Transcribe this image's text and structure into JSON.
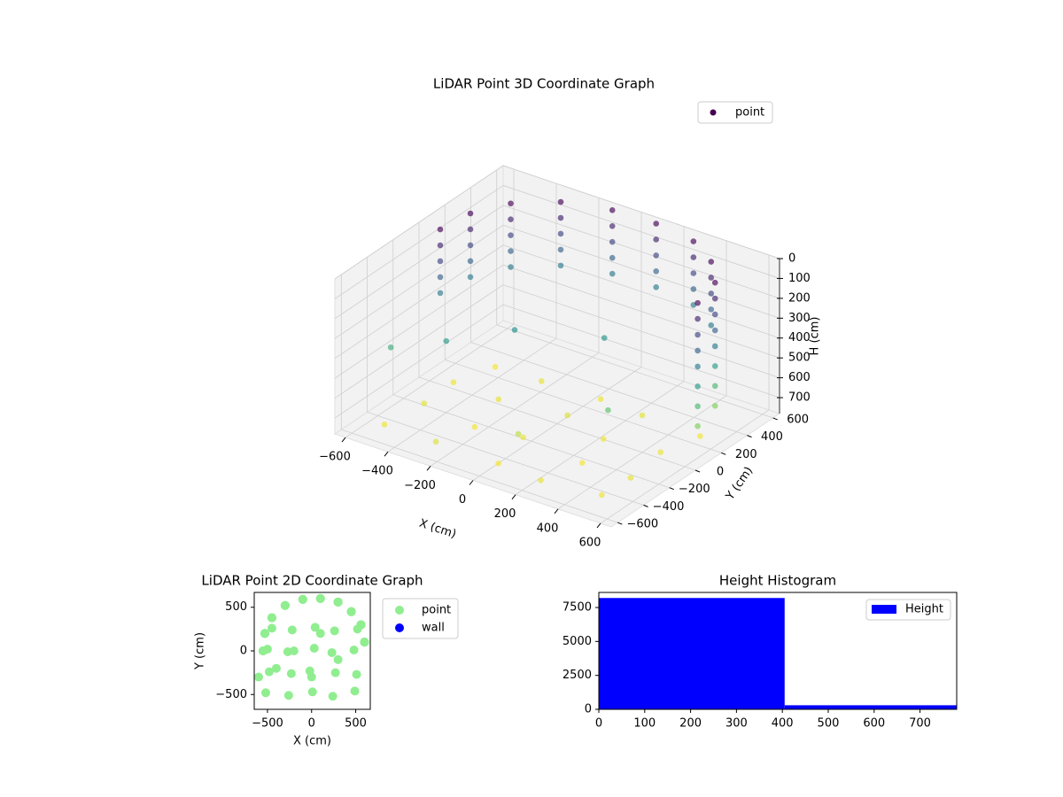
{
  "chart_data": [
    {
      "type": "scatter3d",
      "title": "LiDAR Point 3D Coordinate Graph",
      "x_label": "X (cm)",
      "y_label": "Y (cm)",
      "z_label": "H (cm)",
      "colormap": "viridis",
      "invert_z": true,
      "legend": "upper right",
      "xlim": [
        -650,
        650
      ],
      "ylim": [
        -650,
        650
      ],
      "zlim": [
        0,
        780
      ],
      "xticks": [
        {
          "value": -600,
          "label": "−600"
        },
        {
          "value": -400,
          "label": "−400"
        },
        {
          "value": -200,
          "label": "−200"
        },
        0,
        200,
        400,
        600
      ],
      "yticks": [
        {
          "value": -600,
          "label": "−600"
        },
        {
          "value": -400,
          "label": "−400"
        },
        {
          "value": -200,
          "label": "−200"
        },
        0,
        200,
        400,
        600
      ],
      "zticks": [
        0,
        100,
        200,
        300,
        400,
        500,
        600,
        700
      ],
      "series": [
        {
          "name": "point",
          "color": "#440154",
          "x": [
            -550,
            -550,
            -550,
            -550,
            -550,
            -530,
            -530,
            -530,
            -530,
            -530,
            -450,
            -450,
            -450,
            -450,
            -450,
            -300,
            -300,
            -300,
            -300,
            -300,
            -100,
            -100,
            -100,
            -100,
            -100,
            100,
            100,
            100,
            100,
            100,
            300,
            300,
            300,
            300,
            300,
            450,
            450,
            450,
            450,
            450,
            560,
            560,
            560,
            560,
            560,
            600,
            600,
            600,
            600,
            600,
            560,
            560,
            560,
            600,
            600,
            600,
            -520,
            -260,
            10,
            240,
            490,
            -480,
            -230,
            -20,
            270,
            510,
            -500,
            -270,
            30,
            230,
            480,
            -450,
            -220,
            40,
            260,
            520,
            -600,
            -400,
            -200,
            100,
            300,
            0
          ],
          "y": [
            0,
            0,
            0,
            0,
            0,
            200,
            200,
            200,
            200,
            200,
            380,
            380,
            380,
            380,
            380,
            520,
            520,
            520,
            520,
            520,
            590,
            590,
            590,
            590,
            590,
            600,
            600,
            600,
            600,
            600,
            560,
            560,
            560,
            560,
            560,
            450,
            450,
            450,
            450,
            450,
            300,
            300,
            300,
            300,
            300,
            100,
            100,
            100,
            100,
            100,
            300,
            300,
            300,
            100,
            100,
            100,
            -480,
            -510,
            -470,
            -520,
            -460,
            -240,
            -260,
            -230,
            -250,
            -270,
            20,
            -10,
            30,
            -20,
            10,
            260,
            240,
            270,
            230,
            250,
            -300,
            -200,
            0,
            200,
            -100,
            -300
          ],
          "z": [
            0,
            80,
            160,
            240,
            320,
            0,
            80,
            160,
            240,
            320,
            0,
            80,
            160,
            240,
            320,
            0,
            80,
            160,
            240,
            320,
            0,
            80,
            160,
            240,
            320,
            0,
            80,
            160,
            240,
            320,
            0,
            80,
            160,
            240,
            320,
            0,
            80,
            160,
            240,
            320,
            0,
            80,
            160,
            240,
            320,
            0,
            80,
            160,
            240,
            320,
            420,
            520,
            620,
            420,
            520,
            620,
            760,
            740,
            770,
            750,
            760,
            745,
            765,
            755,
            770,
            750,
            760,
            750,
            740,
            765,
            755,
            770,
            750,
            760,
            745,
            765,
            480,
            420,
            380,
            400,
            560,
            700
          ]
        }
      ]
    },
    {
      "type": "scatter",
      "title": "LiDAR Point 2D Coordinate Graph",
      "x_label": "X (cm)",
      "y_label": "Y (cm)",
      "legend": "outside right",
      "xlim": [
        -650,
        665
      ],
      "ylim": [
        -670,
        670
      ],
      "xticks": [
        {
          "value": -500,
          "label": "−500"
        },
        0,
        500
      ],
      "yticks": [
        {
          "value": -500,
          "label": "−500"
        },
        0,
        500
      ],
      "series": [
        {
          "name": "point",
          "color": "#90ee90",
          "x": [
            -550,
            -550,
            -550,
            -550,
            -550,
            -530,
            -530,
            -530,
            -530,
            -530,
            -450,
            -450,
            -450,
            -450,
            -450,
            -300,
            -300,
            -300,
            -300,
            -300,
            -100,
            -100,
            -100,
            -100,
            -100,
            100,
            100,
            100,
            100,
            100,
            300,
            300,
            300,
            300,
            300,
            450,
            450,
            450,
            450,
            450,
            560,
            560,
            560,
            560,
            560,
            600,
            600,
            600,
            600,
            600,
            560,
            560,
            560,
            600,
            600,
            600,
            -520,
            -260,
            10,
            240,
            490,
            -480,
            -230,
            -20,
            270,
            510,
            -500,
            -270,
            30,
            230,
            480,
            -450,
            -220,
            40,
            260,
            520,
            -600,
            -400,
            -200,
            100,
            300,
            0
          ],
          "y": [
            0,
            0,
            0,
            0,
            0,
            200,
            200,
            200,
            200,
            200,
            380,
            380,
            380,
            380,
            380,
            520,
            520,
            520,
            520,
            520,
            590,
            590,
            590,
            590,
            590,
            600,
            600,
            600,
            600,
            600,
            560,
            560,
            560,
            560,
            560,
            450,
            450,
            450,
            450,
            450,
            300,
            300,
            300,
            300,
            300,
            100,
            100,
            100,
            100,
            100,
            300,
            300,
            300,
            100,
            100,
            100,
            -480,
            -510,
            -470,
            -520,
            -460,
            -240,
            -260,
            -230,
            -250,
            -270,
            20,
            -10,
            30,
            -20,
            10,
            260,
            240,
            270,
            230,
            250,
            -300,
            -200,
            0,
            200,
            -100,
            -300
          ]
        },
        {
          "name": "wall",
          "color": "#0000ff",
          "x": [],
          "y": []
        }
      ]
    },
    {
      "type": "histogram",
      "title": "Height Histogram",
      "legend": "upper right",
      "series": [
        {
          "name": "Height",
          "color": "#0000ff",
          "bins": [
            0,
            405,
            780
          ],
          "counts": [
            8200,
            300
          ]
        }
      ],
      "xlim": [
        0,
        780
      ],
      "ylim": [
        0,
        8610
      ],
      "xticks": [
        0,
        100,
        200,
        300,
        400,
        500,
        600,
        700
      ],
      "yticks": [
        0,
        2500,
        5000,
        7500
      ]
    }
  ]
}
